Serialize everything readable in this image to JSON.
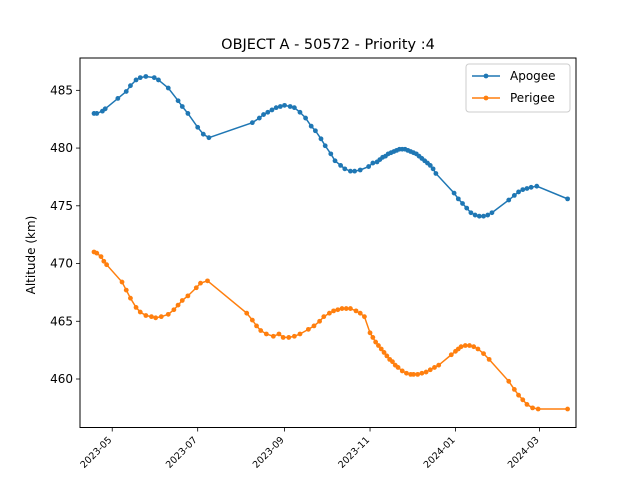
{
  "chart_data": {
    "type": "line",
    "title": "OBJECT A - 50572 - Priority :4",
    "xlabel": "",
    "ylabel": "Altitude (km)",
    "ylim": [
      455.8,
      487.8
    ],
    "xlim": [
      "2023-04-08",
      "2024-03-27"
    ],
    "y_ticks": [
      460,
      465,
      470,
      475,
      480,
      485
    ],
    "x_ticks": [
      "2023-05",
      "2023-07",
      "2023-09",
      "2023-11",
      "2024-01",
      "2024-03"
    ],
    "grid": false,
    "legend_position": "top-right",
    "colors": {
      "apogee": "#1f77b4",
      "perigee": "#ff7f0e"
    },
    "series": [
      {
        "name": "Apogee",
        "points": [
          [
            "2023-04-18",
            483.0
          ],
          [
            "2023-04-20",
            483.0
          ],
          [
            "2023-04-24",
            483.2
          ],
          [
            "2023-04-26",
            483.4
          ],
          [
            "2023-05-05",
            484.3
          ],
          [
            "2023-05-11",
            484.9
          ],
          [
            "2023-05-14",
            485.4
          ],
          [
            "2023-05-18",
            485.9
          ],
          [
            "2023-05-21",
            486.1
          ],
          [
            "2023-05-25",
            486.2
          ],
          [
            "2023-05-31",
            486.1
          ],
          [
            "2023-06-03",
            485.9
          ],
          [
            "2023-06-10",
            485.2
          ],
          [
            "2023-06-17",
            484.1
          ],
          [
            "2023-06-20",
            483.6
          ],
          [
            "2023-06-24",
            483.0
          ],
          [
            "2023-07-01",
            481.8
          ],
          [
            "2023-07-05",
            481.2
          ],
          [
            "2023-07-09",
            480.9
          ],
          [
            "2023-08-09",
            482.2
          ],
          [
            "2023-08-14",
            482.6
          ],
          [
            "2023-08-17",
            482.9
          ],
          [
            "2023-08-20",
            483.1
          ],
          [
            "2023-08-23",
            483.3
          ],
          [
            "2023-08-26",
            483.5
          ],
          [
            "2023-08-29",
            483.6
          ],
          [
            "2023-09-01",
            483.7
          ],
          [
            "2023-09-05",
            483.6
          ],
          [
            "2023-09-08",
            483.5
          ],
          [
            "2023-09-12",
            483.1
          ],
          [
            "2023-09-16",
            482.6
          ],
          [
            "2023-09-20",
            481.9
          ],
          [
            "2023-09-23",
            481.5
          ],
          [
            "2023-09-27",
            480.8
          ],
          [
            "2023-09-30",
            480.2
          ],
          [
            "2023-10-04",
            479.5
          ],
          [
            "2023-10-07",
            478.9
          ],
          [
            "2023-10-11",
            478.5
          ],
          [
            "2023-10-14",
            478.2
          ],
          [
            "2023-10-18",
            478.0
          ],
          [
            "2023-10-21",
            478.0
          ],
          [
            "2023-10-25",
            478.1
          ],
          [
            "2023-10-31",
            478.4
          ],
          [
            "2023-11-03",
            478.7
          ],
          [
            "2023-11-06",
            478.8
          ],
          [
            "2023-11-08",
            479.0
          ],
          [
            "2023-11-10",
            479.2
          ],
          [
            "2023-11-12",
            479.3
          ],
          [
            "2023-11-14",
            479.5
          ],
          [
            "2023-11-16",
            479.6
          ],
          [
            "2023-11-18",
            479.7
          ],
          [
            "2023-11-20",
            479.8
          ],
          [
            "2023-11-22",
            479.9
          ],
          [
            "2023-11-24",
            479.9
          ],
          [
            "2023-11-26",
            479.9
          ],
          [
            "2023-11-28",
            479.8
          ],
          [
            "2023-11-30",
            479.7
          ],
          [
            "2023-12-02",
            479.6
          ],
          [
            "2023-12-04",
            479.5
          ],
          [
            "2023-12-06",
            479.3
          ],
          [
            "2023-12-08",
            479.1
          ],
          [
            "2023-12-10",
            478.9
          ],
          [
            "2023-12-12",
            478.7
          ],
          [
            "2023-12-14",
            478.5
          ],
          [
            "2023-12-16",
            478.2
          ],
          [
            "2023-12-18",
            477.8
          ],
          [
            "2023-12-31",
            476.1
          ],
          [
            "2024-01-03",
            475.6
          ],
          [
            "2024-01-06",
            475.2
          ],
          [
            "2024-01-09",
            474.8
          ],
          [
            "2024-01-12",
            474.4
          ],
          [
            "2024-01-15",
            474.2
          ],
          [
            "2024-01-18",
            474.1
          ],
          [
            "2024-01-21",
            474.1
          ],
          [
            "2024-01-24",
            474.2
          ],
          [
            "2024-01-27",
            474.4
          ],
          [
            "2024-02-08",
            475.5
          ],
          [
            "2024-02-12",
            475.9
          ],
          [
            "2024-02-15",
            476.2
          ],
          [
            "2024-02-18",
            476.4
          ],
          [
            "2024-02-21",
            476.5
          ],
          [
            "2024-02-24",
            476.6
          ],
          [
            "2024-02-28",
            476.7
          ],
          [
            "2024-03-21",
            475.6
          ]
        ]
      },
      {
        "name": "Perigee",
        "points": [
          [
            "2023-04-18",
            471.0
          ],
          [
            "2023-04-20",
            470.9
          ],
          [
            "2023-04-23",
            470.6
          ],
          [
            "2023-04-25",
            470.2
          ],
          [
            "2023-04-27",
            469.9
          ],
          [
            "2023-05-08",
            468.4
          ],
          [
            "2023-05-11",
            467.7
          ],
          [
            "2023-05-14",
            467.0
          ],
          [
            "2023-05-18",
            466.2
          ],
          [
            "2023-05-21",
            465.8
          ],
          [
            "2023-05-25",
            465.5
          ],
          [
            "2023-05-29",
            465.4
          ],
          [
            "2023-06-01",
            465.3
          ],
          [
            "2023-06-05",
            465.4
          ],
          [
            "2023-06-10",
            465.6
          ],
          [
            "2023-06-14",
            466.0
          ],
          [
            "2023-06-17",
            466.4
          ],
          [
            "2023-06-20",
            466.8
          ],
          [
            "2023-06-24",
            467.2
          ],
          [
            "2023-06-30",
            467.9
          ],
          [
            "2023-07-03",
            468.3
          ],
          [
            "2023-07-08",
            468.5
          ],
          [
            "2023-08-05",
            465.7
          ],
          [
            "2023-08-09",
            465.1
          ],
          [
            "2023-08-12",
            464.6
          ],
          [
            "2023-08-15",
            464.2
          ],
          [
            "2023-08-19",
            463.9
          ],
          [
            "2023-08-24",
            463.7
          ],
          [
            "2023-08-28",
            463.9
          ],
          [
            "2023-08-31",
            463.6
          ],
          [
            "2023-09-04",
            463.6
          ],
          [
            "2023-09-08",
            463.7
          ],
          [
            "2023-09-12",
            463.9
          ],
          [
            "2023-09-18",
            464.3
          ],
          [
            "2023-09-22",
            464.6
          ],
          [
            "2023-09-26",
            465.0
          ],
          [
            "2023-09-29",
            465.4
          ],
          [
            "2023-10-03",
            465.7
          ],
          [
            "2023-10-06",
            465.9
          ],
          [
            "2023-10-09",
            466.0
          ],
          [
            "2023-10-12",
            466.1
          ],
          [
            "2023-10-15",
            466.1
          ],
          [
            "2023-10-18",
            466.1
          ],
          [
            "2023-10-22",
            465.9
          ],
          [
            "2023-10-25",
            465.7
          ],
          [
            "2023-10-28",
            465.4
          ],
          [
            "2023-11-01",
            464.0
          ],
          [
            "2023-11-03",
            463.6
          ],
          [
            "2023-11-05",
            463.2
          ],
          [
            "2023-11-07",
            462.9
          ],
          [
            "2023-11-09",
            462.6
          ],
          [
            "2023-11-11",
            462.3
          ],
          [
            "2023-11-13",
            462.0
          ],
          [
            "2023-11-15",
            461.7
          ],
          [
            "2023-11-17",
            461.5
          ],
          [
            "2023-11-19",
            461.2
          ],
          [
            "2023-11-21",
            461.0
          ],
          [
            "2023-11-24",
            460.7
          ],
          [
            "2023-11-27",
            460.5
          ],
          [
            "2023-11-30",
            460.4
          ],
          [
            "2023-12-02",
            460.4
          ],
          [
            "2023-12-05",
            460.4
          ],
          [
            "2023-12-08",
            460.5
          ],
          [
            "2023-12-11",
            460.6
          ],
          [
            "2023-12-14",
            460.8
          ],
          [
            "2023-12-17",
            461.0
          ],
          [
            "2023-12-20",
            461.2
          ],
          [
            "2023-12-29",
            462.1
          ],
          [
            "2024-01-01",
            462.4
          ],
          [
            "2024-01-03",
            462.6
          ],
          [
            "2024-01-05",
            462.8
          ],
          [
            "2024-01-08",
            462.9
          ],
          [
            "2024-01-11",
            462.9
          ],
          [
            "2024-01-14",
            462.8
          ],
          [
            "2024-01-17",
            462.6
          ],
          [
            "2024-01-21",
            462.2
          ],
          [
            "2024-01-25",
            461.7
          ],
          [
            "2024-02-08",
            459.8
          ],
          [
            "2024-02-12",
            459.1
          ],
          [
            "2024-02-15",
            458.6
          ],
          [
            "2024-02-18",
            458.2
          ],
          [
            "2024-02-21",
            457.8
          ],
          [
            "2024-02-25",
            457.5
          ],
          [
            "2024-02-29",
            457.4
          ],
          [
            "2024-03-21",
            457.4
          ]
        ]
      }
    ]
  }
}
